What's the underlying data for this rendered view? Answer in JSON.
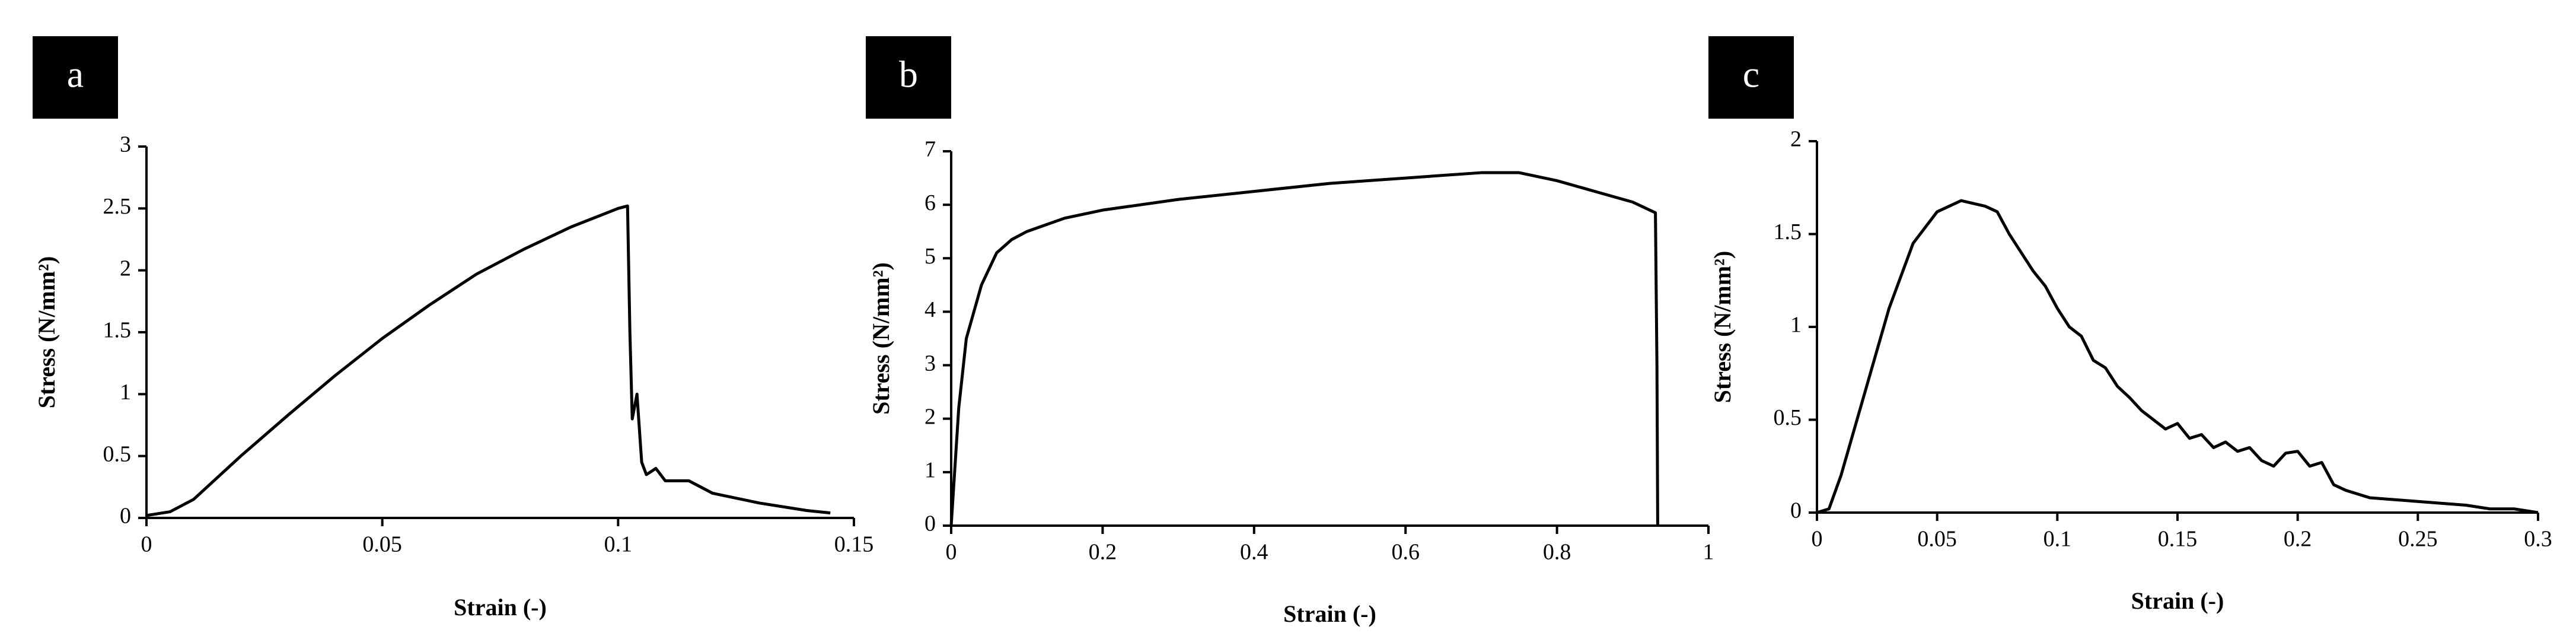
{
  "chart_data": [
    {
      "type": "line",
      "panel_label": "a",
      "x_label": "Strain (-)",
      "y_label": "Stress (N/mm²)",
      "color": "#000000",
      "x": [
        0,
        0.005,
        0.01,
        0.02,
        0.03,
        0.04,
        0.05,
        0.06,
        0.07,
        0.08,
        0.09,
        0.1,
        0.102,
        0.1025,
        0.103,
        0.104,
        0.105,
        0.106,
        0.108,
        0.11,
        0.115,
        0.12,
        0.13,
        0.14,
        0.145
      ],
      "values": [
        0.02,
        0.05,
        0.15,
        0.5,
        0.83,
        1.15,
        1.45,
        1.72,
        1.97,
        2.17,
        2.35,
        2.5,
        2.52,
        1.5,
        0.8,
        1.0,
        0.45,
        0.35,
        0.4,
        0.3,
        0.3,
        0.2,
        0.12,
        0.06,
        0.04
      ],
      "xlim": [
        0,
        0.15
      ],
      "xticks": [
        0,
        0.05,
        0.1,
        0.15
      ],
      "ylim": [
        0,
        3
      ],
      "yticks": [
        0,
        0.5,
        1,
        1.5,
        2,
        2.5,
        3
      ]
    },
    {
      "type": "line",
      "panel_label": "b",
      "x_label": "Strain (-)",
      "y_label": "Stress (N/mm²)",
      "color": "#000000",
      "x": [
        0,
        0.01,
        0.02,
        0.04,
        0.06,
        0.08,
        0.1,
        0.15,
        0.2,
        0.3,
        0.4,
        0.5,
        0.6,
        0.7,
        0.75,
        0.8,
        0.85,
        0.9,
        0.93,
        0.932,
        0.933
      ],
      "values": [
        0,
        2.2,
        3.5,
        4.5,
        5.1,
        5.35,
        5.5,
        5.75,
        5.9,
        6.1,
        6.25,
        6.4,
        6.5,
        6.6,
        6.6,
        6.45,
        6.25,
        6.05,
        5.85,
        3,
        0
      ],
      "xlim": [
        0,
        1
      ],
      "xticks": [
        0,
        0.2,
        0.4,
        0.6,
        0.8,
        1
      ],
      "ylim": [
        0,
        7
      ],
      "yticks": [
        0,
        1,
        2,
        3,
        4,
        5,
        6,
        7
      ]
    },
    {
      "type": "line",
      "panel_label": "c",
      "x_label": "Strain (-)",
      "y_label": "Stress (N/mm²)",
      "color": "#000000",
      "x": [
        0,
        0.005,
        0.01,
        0.02,
        0.03,
        0.04,
        0.05,
        0.06,
        0.07,
        0.075,
        0.08,
        0.085,
        0.09,
        0.095,
        0.1,
        0.105,
        0.11,
        0.115,
        0.12,
        0.125,
        0.13,
        0.135,
        0.14,
        0.145,
        0.15,
        0.155,
        0.16,
        0.165,
        0.17,
        0.175,
        0.18,
        0.185,
        0.19,
        0.195,
        0.2,
        0.205,
        0.21,
        0.215,
        0.22,
        0.23,
        0.24,
        0.25,
        0.26,
        0.27,
        0.28,
        0.29,
        0.3
      ],
      "values": [
        0,
        0.02,
        0.2,
        0.65,
        1.1,
        1.45,
        1.62,
        1.68,
        1.65,
        1.62,
        1.5,
        1.4,
        1.3,
        1.22,
        1.1,
        1.0,
        0.95,
        0.82,
        0.78,
        0.68,
        0.62,
        0.55,
        0.5,
        0.45,
        0.48,
        0.4,
        0.42,
        0.35,
        0.38,
        0.33,
        0.35,
        0.28,
        0.25,
        0.32,
        0.33,
        0.25,
        0.27,
        0.15,
        0.12,
        0.08,
        0.07,
        0.06,
        0.05,
        0.04,
        0.02,
        0.02,
        0
      ],
      "xlim": [
        0,
        0.3
      ],
      "xticks": [
        0,
        0.05,
        0.1,
        0.15,
        0.2,
        0.25,
        0.3
      ],
      "ylim": [
        0,
        2
      ],
      "yticks": [
        0,
        0.5,
        1,
        1.5,
        2
      ]
    }
  ]
}
